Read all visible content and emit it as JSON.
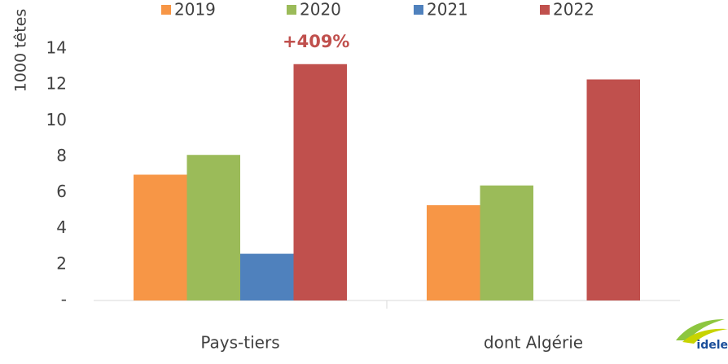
{
  "chart_data": {
    "type": "bar",
    "y_label": "1000 têtes",
    "annotation": "+409%",
    "logo": "idele",
    "categories": [
      "Pays-tiers",
      "dont Algérie"
    ],
    "series": [
      {
        "name": "2019",
        "color": "#f79646",
        "values": [
          7.0,
          5.3
        ]
      },
      {
        "name": "2020",
        "color": "#9bbb59",
        "values": [
          8.1,
          6.4
        ]
      },
      {
        "name": "2021",
        "color": "#4f81bd",
        "values": [
          2.6,
          null
        ]
      },
      {
        "name": "2022",
        "color": "#c0504d",
        "values": [
          13.15,
          12.3
        ]
      }
    ],
    "ylim": [
      0,
      14
    ],
    "yticks": [
      {
        "value": 0,
        "label": "-"
      },
      2,
      4,
      6,
      8,
      10,
      12,
      14
    ],
    "grid": false
  }
}
